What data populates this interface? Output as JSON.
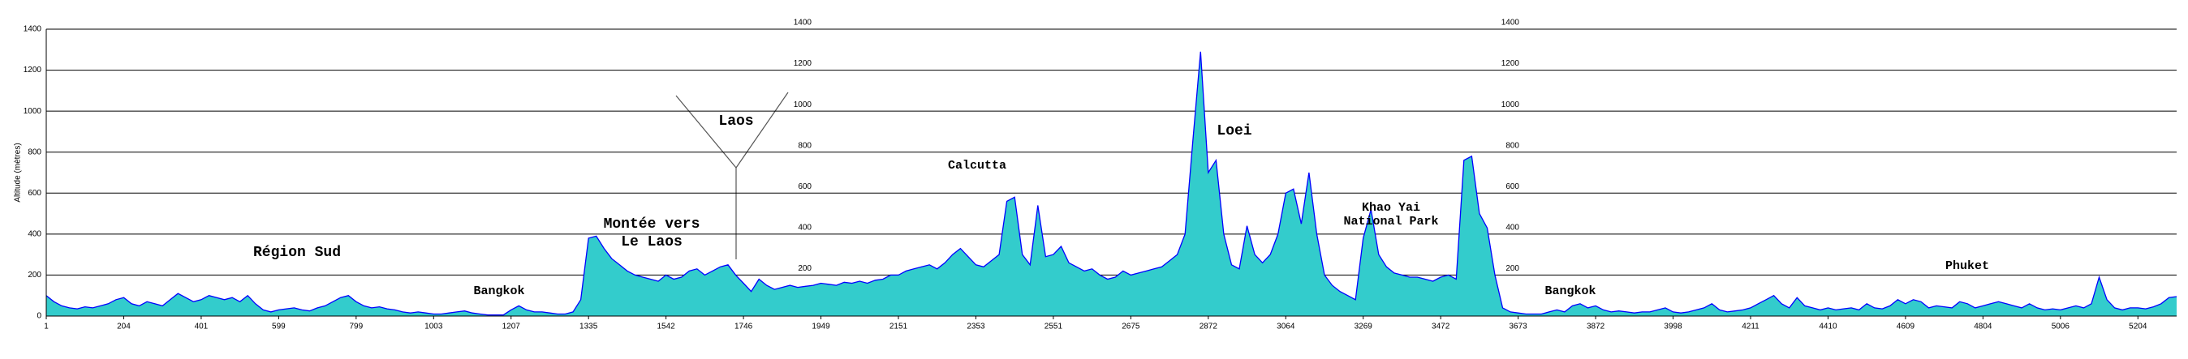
{
  "chart_data": {
    "type": "area",
    "y_label": "Altitude (mètres)",
    "color": "#33cccc",
    "line_color": "#0000ff",
    "ylim": [
      0,
      1400
    ],
    "yticks": [
      0,
      200,
      400,
      600,
      800,
      1000,
      1200,
      1400
    ],
    "grid": true,
    "categories": [
      "1",
      null,
      null,
      null,
      null,
      null,
      null,
      null,
      null,
      null,
      "204",
      null,
      null,
      null,
      null,
      null,
      null,
      null,
      null,
      null,
      "401",
      null,
      null,
      null,
      null,
      null,
      null,
      null,
      null,
      null,
      "599",
      null,
      null,
      null,
      null,
      null,
      null,
      null,
      null,
      null,
      "799",
      null,
      null,
      null,
      null,
      null,
      null,
      null,
      null,
      null,
      "1003",
      null,
      null,
      null,
      null,
      null,
      null,
      null,
      null,
      null,
      "1207",
      null,
      null,
      null,
      null,
      null,
      null,
      null,
      null,
      null,
      "1335",
      null,
      null,
      null,
      null,
      null,
      null,
      null,
      null,
      null,
      "1542",
      null,
      null,
      null,
      null,
      null,
      null,
      null,
      null,
      null,
      "1746",
      null,
      null,
      null,
      null,
      null,
      null,
      null,
      null,
      null,
      "1949",
      null,
      null,
      null,
      null,
      null,
      null,
      null,
      null,
      null,
      "2151",
      null,
      null,
      null,
      null,
      null,
      null,
      null,
      null,
      null,
      "2353",
      null,
      null,
      null,
      null,
      null,
      null,
      null,
      null,
      null,
      "2551",
      null,
      null,
      null,
      null,
      null,
      null,
      null,
      null,
      null,
      "2675",
      null,
      null,
      null,
      null,
      null,
      null,
      null,
      null,
      null,
      "2872",
      null,
      null,
      null,
      null,
      null,
      null,
      null,
      null,
      null,
      "3064",
      null,
      null,
      null,
      null,
      null,
      null,
      null,
      null,
      null,
      "3269",
      null,
      null,
      null,
      null,
      null,
      null,
      null,
      null,
      null,
      "3472",
      null,
      null,
      null,
      null,
      null,
      null,
      null,
      null,
      null,
      "3673",
      null,
      null,
      null,
      null,
      null,
      null,
      null,
      null,
      null,
      "3872",
      null,
      null,
      null,
      null,
      null,
      null,
      null,
      null,
      null,
      "3998",
      null,
      null,
      null,
      null,
      null,
      null,
      null,
      null,
      null,
      "4211",
      null,
      null,
      null,
      null,
      null,
      null,
      null,
      null,
      null,
      "4410",
      null,
      null,
      null,
      null,
      null,
      null,
      null,
      null,
      null,
      "4609",
      null,
      null,
      null,
      null,
      null,
      null,
      null,
      null,
      null,
      "4804",
      null,
      null,
      null,
      null,
      null,
      null,
      null,
      null,
      null,
      "5006",
      null,
      null,
      null,
      null,
      null,
      null,
      null,
      null,
      null,
      "5204",
      null,
      null,
      null,
      null,
      null
    ],
    "values": [
      100,
      70,
      50,
      40,
      35,
      45,
      40,
      50,
      60,
      80,
      90,
      60,
      50,
      70,
      60,
      50,
      80,
      110,
      90,
      70,
      80,
      100,
      90,
      80,
      90,
      70,
      100,
      60,
      30,
      20,
      30,
      35,
      40,
      30,
      25,
      40,
      50,
      70,
      90,
      100,
      70,
      50,
      40,
      45,
      35,
      30,
      20,
      15,
      20,
      15,
      10,
      10,
      15,
      20,
      25,
      15,
      10,
      5,
      5,
      5,
      30,
      50,
      30,
      20,
      20,
      15,
      10,
      10,
      20,
      80,
      380,
      390,
      330,
      280,
      250,
      220,
      200,
      190,
      180,
      170,
      200,
      180,
      190,
      220,
      230,
      200,
      220,
      240,
      250,
      200,
      160,
      120,
      180,
      150,
      130,
      140,
      150,
      140,
      145,
      150,
      160,
      155,
      150,
      165,
      160,
      170,
      160,
      175,
      180,
      200,
      200,
      220,
      230,
      240,
      250,
      230,
      260,
      300,
      330,
      290,
      250,
      240,
      270,
      300,
      560,
      580,
      300,
      250,
      540,
      290,
      300,
      340,
      260,
      240,
      220,
      230,
      200,
      180,
      190,
      220,
      200,
      210,
      220,
      230,
      240,
      270,
      300,
      400,
      850,
      1290,
      700,
      760,
      400,
      250,
      230,
      440,
      300,
      260,
      300,
      400,
      600,
      620,
      450,
      700,
      400,
      200,
      150,
      120,
      100,
      80,
      380,
      520,
      300,
      240,
      210,
      200,
      190,
      190,
      180,
      170,
      190,
      200,
      180,
      760,
      780,
      500,
      430,
      200,
      40,
      20,
      15,
      10,
      10,
      10,
      20,
      30,
      20,
      50,
      60,
      40,
      50,
      30,
      20,
      25,
      20,
      15,
      20,
      20,
      30,
      40,
      20,
      15,
      20,
      30,
      40,
      60,
      30,
      20,
      25,
      30,
      40,
      60,
      80,
      100,
      60,
      40,
      90,
      50,
      40,
      30,
      40,
      30,
      35,
      40,
      30,
      60,
      40,
      35,
      50,
      80,
      60,
      80,
      70,
      40,
      50,
      45,
      40,
      70,
      60,
      40,
      50,
      60,
      70,
      60,
      50,
      40,
      60,
      40,
      30,
      35,
      30,
      40,
      50,
      40,
      60,
      190,
      80,
      40,
      30,
      40,
      40,
      35,
      45,
      60,
      90,
      95
    ],
    "annotations": [
      {
        "lines": [
          "Région Sud"
        ]
      },
      {
        "lines": [
          "Bangkok"
        ]
      },
      {
        "lines": [
          "Montée vers",
          "Le Laos"
        ]
      },
      {
        "lines": [
          "Laos"
        ]
      },
      {
        "lines": [
          "Calcutta"
        ]
      },
      {
        "lines": [
          "Loei"
        ]
      },
      {
        "lines": [
          "Khao Yai",
          "National Park"
        ]
      },
      {
        "lines": [
          "Bangkok"
        ]
      },
      {
        "lines": [
          "Phuket"
        ]
      }
    ]
  }
}
